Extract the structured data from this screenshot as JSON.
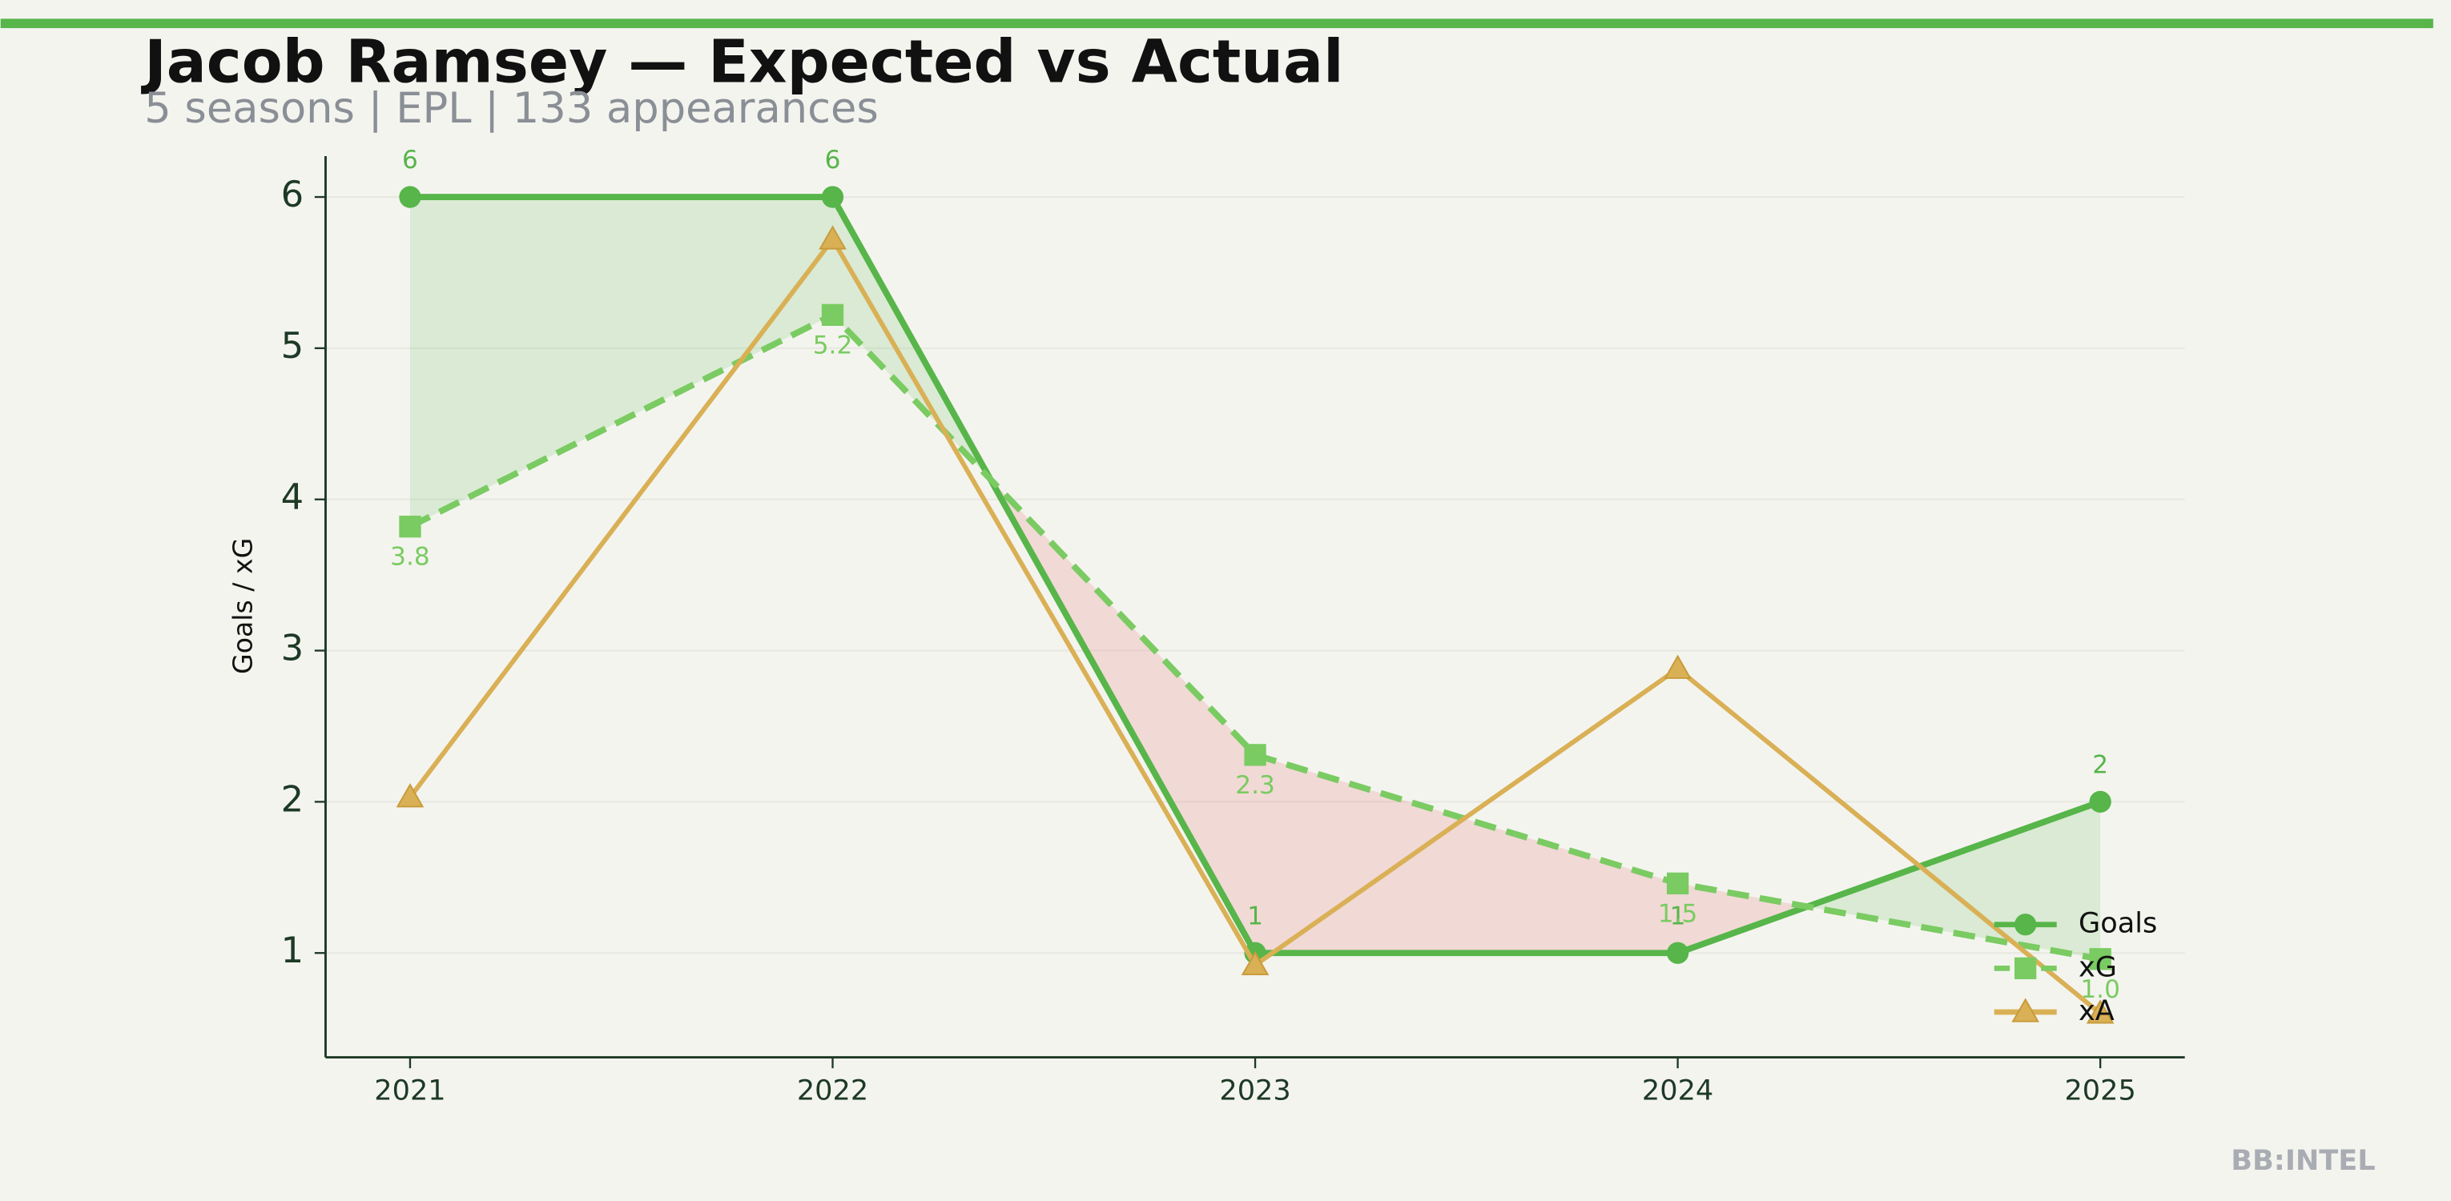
{
  "chart_data": {
    "type": "line",
    "title": "Jacob Ramsey — Expected vs Actual",
    "subtitle": "5 seasons | EPL | 133 appearances",
    "y_label": "Goals / xG",
    "watermark": "BB:INTEL",
    "x": [
      2021,
      2022,
      2023,
      2024,
      2025
    ],
    "xlim": [
      2020.8,
      2025.2
    ],
    "xticks": [
      2021,
      2022,
      2023,
      2024,
      2025
    ],
    "ylim": [
      0.31,
      6.27
    ],
    "yticks": [
      1,
      2,
      3,
      4,
      5,
      6
    ],
    "grid": true,
    "legend": "lower right",
    "series": [
      {
        "name": "Goals",
        "color": "#57b54a",
        "marker": "circle",
        "dash": "solid",
        "values": [
          6,
          6,
          1,
          1,
          2
        ]
      },
      {
        "name": "xG",
        "color": "#7acb62",
        "marker": "square",
        "dash": "dashed",
        "values": [
          3.82,
          5.22,
          2.31,
          1.46,
          0.96
        ],
        "value_labels": [
          "3.8",
          "5.2",
          "2.3",
          "1.5",
          "1.0"
        ]
      },
      {
        "name": "xA",
        "color": "#d9b055",
        "marker": "triangle",
        "dash": "solid",
        "values": [
          2.03,
          5.72,
          0.92,
          2.88,
          0.6
        ]
      }
    ],
    "fill_above_color": "#5ab84a",
    "fill_below_color": "#e87a7a"
  }
}
